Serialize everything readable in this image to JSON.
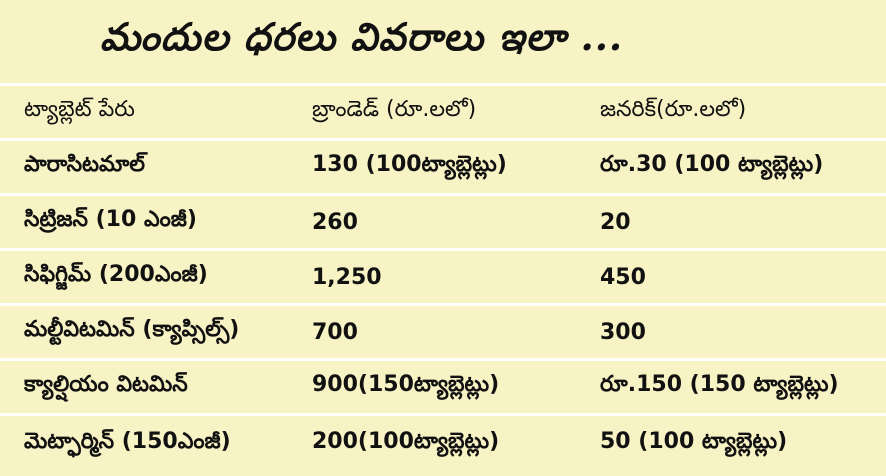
{
  "title": "మందుల ధరలు వివరాలు ఇలా ...",
  "table": {
    "headers": [
      "ట్యాబ్లెట్ పేరు",
      "బ్రాండెడ్ (రూ.లలో)",
      "జనరిక్(రూ.లలో)"
    ],
    "rows": [
      [
        "పారాసిటమాల్",
        "130 (100ట్యాబ్లెట్లు)",
        "రూ.30 (100 ట్యాబ్లెట్లు)"
      ],
      [
        "సిట్రిజన్ (10 ఎంజీ)",
        "260",
        "20"
      ],
      [
        "సిఫిగ్జిమ్ (200ఎంజీ)",
        "1,250",
        "450"
      ],
      [
        "మల్టీవిటమిన్ (క్యాప్సిల్స్)",
        "700",
        "300"
      ],
      [
        "క్యాల్షియం విటమిన్",
        "900(150ట్యాబ్లెట్లు)",
        "రూ.150 (150 ట్యాబ్లెట్లు)"
      ],
      [
        "మెట్ఫార్మిన్ (150ఎంజీ)",
        "200(100ట్యాబ్లెట్లు)",
        "50 (100 ట్యాబ్లెట్లు)"
      ]
    ]
  },
  "colors": {
    "background": "#f8f3c4",
    "divider": "#ffffff",
    "text": "#111111"
  }
}
